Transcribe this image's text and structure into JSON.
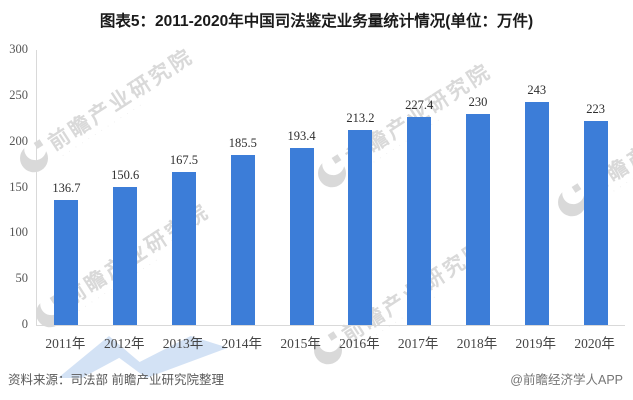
{
  "title": "图表5：2011-2020年中国司法鉴定业务量统计情况(单位：万件)",
  "chart_data": {
    "type": "bar",
    "categories": [
      "2011年",
      "2012年",
      "2013年",
      "2014年",
      "2015年",
      "2016年",
      "2017年",
      "2018年",
      "2019年",
      "2020年"
    ],
    "values": [
      136.7,
      150.6,
      167.5,
      185.5,
      193.4,
      213.2,
      227.4,
      230,
      243,
      223
    ],
    "value_labels": [
      "136.7",
      "150.6",
      "167.5",
      "185.5",
      "193.4",
      "213.2",
      "227.4",
      "230",
      "243",
      "223"
    ],
    "title": "图表5：2011-2020年中国司法鉴定业务量统计情况(单位：万件)",
    "xlabel": "",
    "ylabel": "",
    "ylim": [
      0,
      300
    ],
    "yticks": [
      "300",
      "250",
      "200",
      "150",
      "100",
      "50",
      "0"
    ],
    "grid": false,
    "legend_position": "none",
    "bar_color": "#3c7dd8",
    "axis_line_color": "#d9d9d9"
  },
  "watermark": {
    "text": "前瞻产业研究院",
    "subtext": "· · · · · · · · · · · · ·"
  },
  "footer": {
    "source": "资料来源：司法部 前瞻产业研究院整理",
    "credit": "@前瞻经济学人APP"
  }
}
